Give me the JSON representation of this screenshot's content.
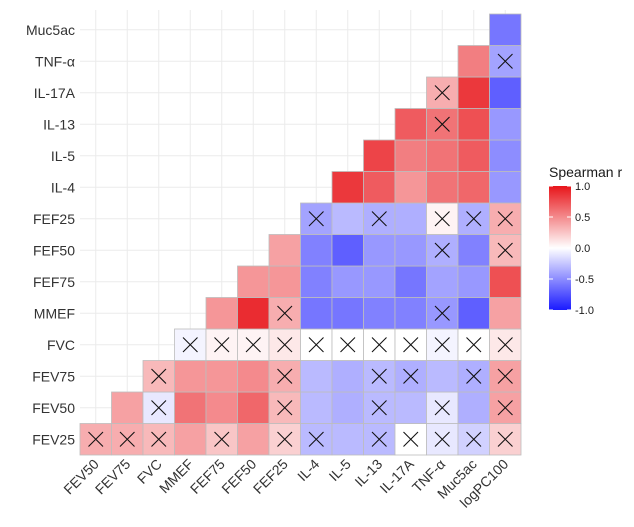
{
  "chart_data": {
    "type": "heatmap",
    "variables": [
      "FEV25",
      "FEV50",
      "FEV75",
      "FVC",
      "MMEF",
      "FEF75",
      "FEF50",
      "FEF25",
      "IL-4",
      "IL-5",
      "IL-13",
      "IL-17A",
      "TNF-α",
      "Muc5ac",
      "logPC100"
    ],
    "x_labels": [
      "FEV50",
      "FEV75",
      "FVC",
      "MMEF",
      "FEF75",
      "FEF50",
      "FEF25",
      "IL-4",
      "IL-5",
      "IL-13",
      "IL-17A",
      "TNF-α",
      "Muc5ac",
      "logPC100"
    ],
    "y_labels": [
      "FEV25",
      "FEV50",
      "FEV75",
      "FVC",
      "MMEF",
      "FEF75",
      "FEF50",
      "FEF25",
      "IL-4",
      "IL-5",
      "IL-13",
      "IL-17A",
      "TNF-α",
      "Muc5ac"
    ],
    "value_scale": {
      "min": -1.0,
      "max": 1.0
    },
    "legend": {
      "title": "Spearman r",
      "ticks": [
        "1.0",
        "0.5",
        "0.0",
        "-0.5",
        "-1.0"
      ],
      "position": "right",
      "colors": {
        "low": "#1a1aff",
        "mid": "#ffffff",
        "high": "#e8151a"
      }
    },
    "cross_meaning": "not significant",
    "grid": true,
    "cells": [
      {
        "x": "FEV50",
        "y": "FEV25",
        "r": 0.35,
        "ns": true
      },
      {
        "x": "FEV75",
        "y": "FEV25",
        "r": 0.35,
        "ns": true
      },
      {
        "x": "FVC",
        "y": "FEV25",
        "r": 0.3,
        "ns": true
      },
      {
        "x": "MMEF",
        "y": "FEV25",
        "r": 0.4,
        "ns": false
      },
      {
        "x": "FEF75",
        "y": "FEV25",
        "r": 0.25,
        "ns": true
      },
      {
        "x": "FEF50",
        "y": "FEV25",
        "r": 0.4,
        "ns": false
      },
      {
        "x": "FEF25",
        "y": "FEV25",
        "r": 0.2,
        "ns": true
      },
      {
        "x": "IL-4",
        "y": "FEV25",
        "r": -0.3,
        "ns": true
      },
      {
        "x": "IL-5",
        "y": "FEV25",
        "r": -0.3,
        "ns": false
      },
      {
        "x": "IL-13",
        "y": "FEV25",
        "r": -0.3,
        "ns": true
      },
      {
        "x": "IL-17A",
        "y": "FEV25",
        "r": 0.0,
        "ns": true
      },
      {
        "x": "TNF-α",
        "y": "FEV25",
        "r": -0.1,
        "ns": true
      },
      {
        "x": "Muc5ac",
        "y": "FEV25",
        "r": -0.2,
        "ns": true
      },
      {
        "x": "logPC100",
        "y": "FEV25",
        "r": 0.2,
        "ns": true
      },
      {
        "x": "FEV75",
        "y": "FEV50",
        "r": 0.4,
        "ns": false
      },
      {
        "x": "FVC",
        "y": "FEV50",
        "r": -0.1,
        "ns": true
      },
      {
        "x": "MMEF",
        "y": "FEV50",
        "r": 0.6,
        "ns": false
      },
      {
        "x": "FEF75",
        "y": "FEV50",
        "r": 0.5,
        "ns": false
      },
      {
        "x": "FEF50",
        "y": "FEV50",
        "r": 0.65,
        "ns": false
      },
      {
        "x": "FEF25",
        "y": "FEV50",
        "r": 0.3,
        "ns": true
      },
      {
        "x": "IL-4",
        "y": "FEV50",
        "r": -0.3,
        "ns": false
      },
      {
        "x": "IL-5",
        "y": "FEV50",
        "r": -0.35,
        "ns": false
      },
      {
        "x": "IL-13",
        "y": "FEV50",
        "r": -0.3,
        "ns": true
      },
      {
        "x": "IL-17A",
        "y": "FEV50",
        "r": -0.3,
        "ns": false
      },
      {
        "x": "TNF-α",
        "y": "FEV50",
        "r": -0.1,
        "ns": true
      },
      {
        "x": "Muc5ac",
        "y": "FEV50",
        "r": -0.35,
        "ns": false
      },
      {
        "x": "logPC100",
        "y": "FEV50",
        "r": 0.4,
        "ns": true
      },
      {
        "x": "FVC",
        "y": "FEV75",
        "r": 0.3,
        "ns": true
      },
      {
        "x": "MMEF",
        "y": "FEV75",
        "r": 0.45,
        "ns": false
      },
      {
        "x": "FEF75",
        "y": "FEV75",
        "r": 0.45,
        "ns": false
      },
      {
        "x": "FEF50",
        "y": "FEV75",
        "r": 0.5,
        "ns": false
      },
      {
        "x": "FEF25",
        "y": "FEV75",
        "r": 0.35,
        "ns": true
      },
      {
        "x": "IL-4",
        "y": "FEV75",
        "r": -0.3,
        "ns": false
      },
      {
        "x": "IL-5",
        "y": "FEV75",
        "r": -0.35,
        "ns": false
      },
      {
        "x": "IL-13",
        "y": "FEV75",
        "r": -0.3,
        "ns": true
      },
      {
        "x": "IL-17A",
        "y": "FEV75",
        "r": -0.35,
        "ns": true
      },
      {
        "x": "TNF-α",
        "y": "FEV75",
        "r": -0.3,
        "ns": false
      },
      {
        "x": "Muc5ac",
        "y": "FEV75",
        "r": -0.35,
        "ns": true
      },
      {
        "x": "logPC100",
        "y": "FEV75",
        "r": 0.4,
        "ns": true
      },
      {
        "x": "MMEF",
        "y": "FVC",
        "r": -0.05,
        "ns": true
      },
      {
        "x": "FEF75",
        "y": "FVC",
        "r": 0.05,
        "ns": true
      },
      {
        "x": "FEF50",
        "y": "FVC",
        "r": 0.05,
        "ns": true
      },
      {
        "x": "FEF25",
        "y": "FVC",
        "r": 0.1,
        "ns": true
      },
      {
        "x": "IL-4",
        "y": "FVC",
        "r": 0.0,
        "ns": true
      },
      {
        "x": "IL-5",
        "y": "FVC",
        "r": 0.0,
        "ns": true
      },
      {
        "x": "IL-13",
        "y": "FVC",
        "r": 0.0,
        "ns": true
      },
      {
        "x": "IL-17A",
        "y": "FVC",
        "r": 0.0,
        "ns": true
      },
      {
        "x": "TNF-α",
        "y": "FVC",
        "r": -0.05,
        "ns": true
      },
      {
        "x": "Muc5ac",
        "y": "FVC",
        "r": 0.0,
        "ns": true
      },
      {
        "x": "logPC100",
        "y": "FVC",
        "r": 0.1,
        "ns": true
      },
      {
        "x": "FEF75",
        "y": "MMEF",
        "r": 0.45,
        "ns": false
      },
      {
        "x": "FEF50",
        "y": "MMEF",
        "r": 0.9,
        "ns": false
      },
      {
        "x": "FEF25",
        "y": "MMEF",
        "r": 0.35,
        "ns": true
      },
      {
        "x": "IL-4",
        "y": "MMEF",
        "r": -0.6,
        "ns": false
      },
      {
        "x": "IL-5",
        "y": "MMEF",
        "r": -0.6,
        "ns": false
      },
      {
        "x": "IL-13",
        "y": "MMEF",
        "r": -0.55,
        "ns": false
      },
      {
        "x": "IL-17A",
        "y": "MMEF",
        "r": -0.55,
        "ns": false
      },
      {
        "x": "TNF-α",
        "y": "MMEF",
        "r": -0.45,
        "ns": true
      },
      {
        "x": "Muc5ac",
        "y": "MMEF",
        "r": -0.7,
        "ns": false
      },
      {
        "x": "logPC100",
        "y": "MMEF",
        "r": 0.4,
        "ns": false
      },
      {
        "x": "FEF50",
        "y": "FEF75",
        "r": 0.45,
        "ns": false
      },
      {
        "x": "FEF25",
        "y": "FEF75",
        "r": 0.45,
        "ns": false
      },
      {
        "x": "IL-4",
        "y": "FEF75",
        "r": -0.55,
        "ns": false
      },
      {
        "x": "IL-5",
        "y": "FEF75",
        "r": -0.45,
        "ns": false
      },
      {
        "x": "IL-13",
        "y": "FEF75",
        "r": -0.45,
        "ns": false
      },
      {
        "x": "IL-17A",
        "y": "FEF75",
        "r": -0.6,
        "ns": false
      },
      {
        "x": "TNF-α",
        "y": "FEF75",
        "r": -0.4,
        "ns": false
      },
      {
        "x": "Muc5ac",
        "y": "FEF75",
        "r": -0.45,
        "ns": false
      },
      {
        "x": "logPC100",
        "y": "FEF75",
        "r": 0.75,
        "ns": false
      },
      {
        "x": "FEF25",
        "y": "FEF50",
        "r": 0.4,
        "ns": false
      },
      {
        "x": "IL-4",
        "y": "FEF50",
        "r": -0.55,
        "ns": false
      },
      {
        "x": "IL-5",
        "y": "FEF50",
        "r": -0.7,
        "ns": false
      },
      {
        "x": "IL-13",
        "y": "FEF50",
        "r": -0.45,
        "ns": false
      },
      {
        "x": "IL-17A",
        "y": "FEF50",
        "r": -0.45,
        "ns": false
      },
      {
        "x": "TNF-α",
        "y": "FEF50",
        "r": -0.35,
        "ns": true
      },
      {
        "x": "Muc5ac",
        "y": "FEF50",
        "r": -0.55,
        "ns": false
      },
      {
        "x": "logPC100",
        "y": "FEF50",
        "r": 0.3,
        "ns": true
      },
      {
        "x": "IL-4",
        "y": "FEF25",
        "r": -0.4,
        "ns": true
      },
      {
        "x": "IL-5",
        "y": "FEF25",
        "r": -0.3,
        "ns": false
      },
      {
        "x": "IL-13",
        "y": "FEF25",
        "r": -0.35,
        "ns": true
      },
      {
        "x": "IL-17A",
        "y": "FEF25",
        "r": -0.35,
        "ns": false
      },
      {
        "x": "TNF-α",
        "y": "FEF25",
        "r": 0.05,
        "ns": true
      },
      {
        "x": "Muc5ac",
        "y": "FEF25",
        "r": -0.35,
        "ns": true
      },
      {
        "x": "logPC100",
        "y": "FEF25",
        "r": 0.35,
        "ns": true
      },
      {
        "x": "IL-5",
        "y": "IL-4",
        "r": 0.85,
        "ns": false
      },
      {
        "x": "IL-13",
        "y": "IL-4",
        "r": 0.7,
        "ns": false
      },
      {
        "x": "IL-17A",
        "y": "IL-4",
        "r": 0.45,
        "ns": false
      },
      {
        "x": "TNF-α",
        "y": "IL-4",
        "r": 0.6,
        "ns": false
      },
      {
        "x": "Muc5ac",
        "y": "IL-4",
        "r": 0.65,
        "ns": false
      },
      {
        "x": "logPC100",
        "y": "IL-4",
        "r": -0.45,
        "ns": false
      },
      {
        "x": "IL-13",
        "y": "IL-5",
        "r": 0.8,
        "ns": false
      },
      {
        "x": "IL-17A",
        "y": "IL-5",
        "r": 0.55,
        "ns": false
      },
      {
        "x": "TNF-α",
        "y": "IL-5",
        "r": 0.6,
        "ns": false
      },
      {
        "x": "Muc5ac",
        "y": "IL-5",
        "r": 0.7,
        "ns": false
      },
      {
        "x": "logPC100",
        "y": "IL-5",
        "r": -0.5,
        "ns": false
      },
      {
        "x": "IL-17A",
        "y": "IL-13",
        "r": 0.7,
        "ns": false
      },
      {
        "x": "TNF-α",
        "y": "IL-13",
        "r": 0.6,
        "ns": true
      },
      {
        "x": "Muc5ac",
        "y": "IL-13",
        "r": 0.75,
        "ns": false
      },
      {
        "x": "logPC100",
        "y": "IL-13",
        "r": -0.45,
        "ns": false
      },
      {
        "x": "TNF-α",
        "y": "IL-17A",
        "r": 0.35,
        "ns": true
      },
      {
        "x": "Muc5ac",
        "y": "IL-17A",
        "r": 0.85,
        "ns": false
      },
      {
        "x": "logPC100",
        "y": "IL-17A",
        "r": -0.7,
        "ns": false
      },
      {
        "x": "Muc5ac",
        "y": "TNF-α",
        "r": 0.55,
        "ns": false
      },
      {
        "x": "logPC100",
        "y": "TNF-α",
        "r": -0.4,
        "ns": true
      },
      {
        "x": "logPC100",
        "y": "Muc5ac",
        "r": -0.6,
        "ns": false
      }
    ]
  }
}
